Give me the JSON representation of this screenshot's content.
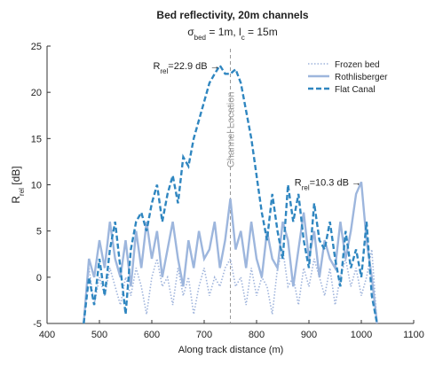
{
  "chart_data": {
    "type": "line",
    "title": "Bed reflectivity, 20m channels",
    "subtitle": [
      "σ",
      "bed",
      " = 1m, l",
      "c",
      " = 15m"
    ],
    "xlabel": "Along track distance (m)",
    "ylabel": [
      "R",
      "rel",
      " [dB]"
    ],
    "xlim": [
      400,
      1100
    ],
    "xticks": [
      400,
      500,
      600,
      700,
      800,
      900,
      1000,
      1100
    ],
    "ylim": [
      -5,
      25
    ],
    "yticks": [
      -5,
      0,
      5,
      10,
      15,
      20,
      25
    ],
    "grid": false,
    "legend": "upper right",
    "x": [
      470,
      480,
      490,
      500,
      510,
      520,
      530,
      540,
      550,
      560,
      570,
      580,
      590,
      600,
      610,
      620,
      630,
      640,
      650,
      660,
      670,
      680,
      690,
      700,
      710,
      720,
      730,
      740,
      750,
      760,
      770,
      780,
      790,
      800,
      810,
      820,
      830,
      840,
      850,
      860,
      870,
      880,
      890,
      900,
      910,
      920,
      930,
      940,
      950,
      960,
      970,
      980,
      990,
      1000,
      1010,
      1020,
      1030
    ],
    "series": [
      {
        "name": "Frozen bed",
        "color": "#9fb4dc",
        "dash": "dotted",
        "values": [
          -5,
          1,
          -3,
          0,
          -2,
          1,
          -1,
          -3,
          0,
          -2,
          1,
          -1,
          -4,
          0,
          2,
          -1,
          0,
          -3,
          1,
          -2,
          0,
          -4,
          -1,
          1,
          -2,
          0,
          -1,
          1,
          2,
          -1,
          0,
          -3,
          1,
          -2,
          0,
          -1,
          -4,
          1,
          3,
          -1,
          0,
          -3,
          1,
          -1,
          2,
          0,
          -2,
          1,
          -3,
          0,
          2,
          -1,
          1,
          -2,
          0,
          3,
          -5
        ]
      },
      {
        "name": "Rothlisberger",
        "color": "#9db6dd",
        "dash": "solid",
        "values": [
          -5,
          2,
          0,
          4,
          1,
          6,
          2,
          0,
          4,
          -1,
          5,
          1,
          6,
          2,
          5,
          0,
          3,
          6,
          2,
          -1,
          4,
          1,
          5,
          2,
          3,
          6,
          1,
          4,
          8.5,
          3,
          5,
          1,
          6,
          2,
          0,
          5,
          2,
          1,
          6,
          4,
          -1,
          3,
          7,
          2,
          5,
          0,
          4,
          2,
          1,
          6,
          2,
          5,
          9,
          10.3,
          4,
          0,
          -5
        ]
      },
      {
        "name": "Flat Canal",
        "color": "#2f86c0",
        "dash": "dashed",
        "values": [
          -5,
          0,
          -3,
          2,
          -2,
          3,
          6,
          1,
          -4,
          3,
          6,
          7,
          5,
          8,
          10,
          6,
          9,
          11,
          8,
          13,
          12,
          15,
          17,
          19,
          21,
          22,
          22.9,
          22,
          22,
          22.5,
          21,
          18,
          15,
          11,
          7,
          4,
          9,
          5,
          2,
          10,
          6,
          9,
          4,
          1,
          8,
          4,
          3,
          6,
          2,
          -1,
          5,
          1,
          3,
          0,
          6,
          -2,
          -5
        ]
      }
    ],
    "channel_location": {
      "x": 750,
      "label": "Channel Location"
    },
    "annotations": [
      {
        "text": [
          "R",
          "rel",
          "=22.9 dB →"
        ],
        "x": 730,
        "y": 22.9
      },
      {
        "text": [
          "R",
          "rel",
          "=10.3 dB →"
        ],
        "x": 1000,
        "y": 10.3
      }
    ]
  }
}
